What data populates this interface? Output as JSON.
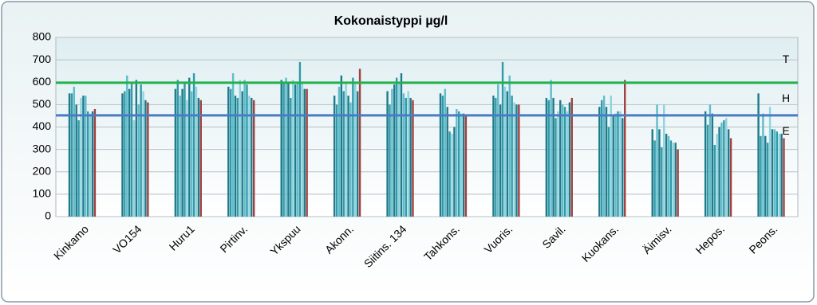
{
  "chart_data": {
    "type": "bar",
    "title": "Kokonaistyppi µg/l",
    "categories": [
      "Kinkamo",
      "VO154",
      "Huru1",
      "Pirtinv.",
      "Ykspuu",
      "Akonn.",
      "Siitins. 134",
      "Tahkons.",
      "Vuoris.",
      "Savil.",
      "Kuokans.",
      "Äimisv.",
      "Hepos.",
      "Peons."
    ],
    "series": [
      {
        "color": "#1f7a8c",
        "values": [
          550,
          550,
          570,
          580,
          610,
          540,
          560,
          550,
          540,
          530,
          490,
          390,
          470,
          550
        ]
      },
      {
        "color": "#2f9aa8",
        "values": [
          550,
          560,
          610,
          570,
          600,
          500,
          500,
          540,
          530,
          520,
          520,
          340,
          410,
          360
        ]
      },
      {
        "color": "#5fbccb",
        "values": [
          580,
          630,
          540,
          640,
          620,
          580,
          570,
          570,
          590,
          610,
          540,
          500,
          500,
          460
        ]
      },
      {
        "color": "#1f7a8c",
        "values": [
          500,
          570,
          570,
          540,
          600,
          630,
          590,
          490,
          500,
          530,
          490,
          390,
          460,
          360
        ]
      },
      {
        "color": "#2f9aa8",
        "values": [
          430,
          600,
          600,
          530,
          530,
          560,
          620,
          380,
          690,
          440,
          400,
          310,
          320,
          330
        ]
      },
      {
        "color": "#8fd3de",
        "values": [
          530,
          430,
          520,
          610,
          610,
          600,
          600,
          370,
          580,
          470,
          540,
          500,
          370,
          490
        ]
      },
      {
        "color": "#1f7a8c",
        "values": [
          540,
          610,
          620,
          560,
          590,
          540,
          640,
          400,
          560,
          520,
          450,
          370,
          400,
          390
        ]
      },
      {
        "color": "#5fbccb",
        "values": [
          540,
          500,
          560,
          610,
          600,
          510,
          550,
          480,
          630,
          500,
          460,
          360,
          420,
          390
        ]
      },
      {
        "color": "#2f9aa8",
        "values": [
          470,
          590,
          640,
          590,
          690,
          620,
          530,
          470,
          540,
          490,
          470,
          340,
          430,
          380
        ]
      },
      {
        "color": "#8fd3de",
        "values": [
          460,
          560,
          580,
          540,
          600,
          600,
          560,
          460,
          510,
          470,
          470,
          330,
          440,
          370
        ]
      },
      {
        "color": "#1f7a8c",
        "values": [
          470,
          520,
          530,
          530,
          570,
          560,
          530,
          460,
          500,
          510,
          440,
          330,
          390,
          370
        ]
      },
      {
        "color": "#a0403f",
        "values": [
          480,
          510,
          520,
          520,
          570,
          660,
          520,
          450,
          500,
          530,
          610,
          300,
          350,
          350
        ]
      }
    ],
    "ylim": [
      0,
      800
    ],
    "yticks": [
      0,
      100,
      200,
      300,
      400,
      500,
      600,
      700,
      800
    ],
    "grid": true,
    "reference_lines": [
      {
        "value": 598,
        "color": "#22b14c"
      },
      {
        "value": 452,
        "color": "#4a7cc4"
      }
    ],
    "zone_labels": [
      "T",
      "H",
      "E"
    ]
  }
}
